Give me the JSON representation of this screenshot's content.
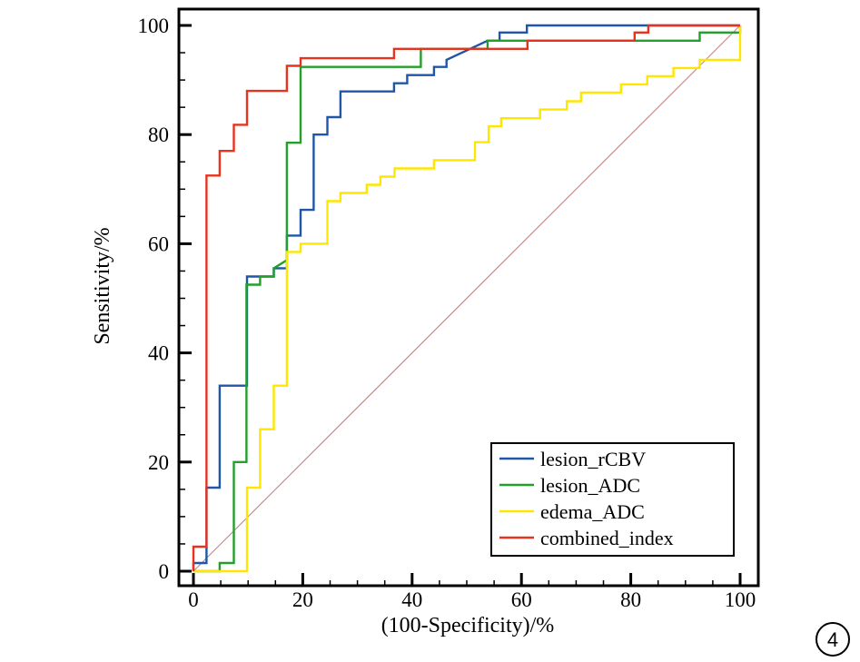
{
  "chart_data": {
    "type": "line",
    "title": "",
    "xlabel": "(100-Specificity)/%",
    "ylabel": "Sensitivity/%",
    "xlim": [
      0,
      100
    ],
    "ylim": [
      0,
      100
    ],
    "xticks": [
      0,
      20,
      40,
      60,
      80,
      100
    ],
    "yticks": [
      0,
      20,
      40,
      60,
      80,
      100
    ],
    "xtick_labels": [
      "0",
      "20",
      "40",
      "60",
      "80",
      "100"
    ],
    "ytick_labels": [
      "0",
      "20",
      "40",
      "60",
      "80",
      "100"
    ],
    "grid": false,
    "legend_position": "bottom-right",
    "panel_label": "4",
    "reference_line": {
      "x": [
        0,
        100
      ],
      "y": [
        0,
        100
      ],
      "color": "#c98a8a"
    },
    "series": [
      {
        "name": "lesion_rCBV",
        "color": "#1f56a8",
        "points": [
          [
            0,
            0
          ],
          [
            0,
            1.5
          ],
          [
            2.4,
            1.5
          ],
          [
            2.4,
            15.3
          ],
          [
            4.8,
            15.3
          ],
          [
            4.8,
            34
          ],
          [
            9.8,
            34
          ],
          [
            9.8,
            54
          ],
          [
            14.7,
            54
          ],
          [
            14.7,
            55.5
          ],
          [
            17.1,
            55.5
          ],
          [
            17.1,
            61.5
          ],
          [
            19.6,
            61.5
          ],
          [
            19.6,
            66.2
          ],
          [
            22,
            66.2
          ],
          [
            22,
            80
          ],
          [
            24.5,
            80
          ],
          [
            24.5,
            83.2
          ],
          [
            26.9,
            83.2
          ],
          [
            26.9,
            87.9
          ],
          [
            36.7,
            87.9
          ],
          [
            36.7,
            89.4
          ],
          [
            39.1,
            89.4
          ],
          [
            39.1,
            90.9
          ],
          [
            44,
            90.9
          ],
          [
            44,
            92.4
          ],
          [
            46.3,
            92.4
          ],
          [
            46.3,
            93.7
          ],
          [
            53.8,
            97.2
          ],
          [
            56,
            97.2
          ],
          [
            56,
            98.7
          ],
          [
            61,
            98.7
          ],
          [
            61,
            100
          ],
          [
            100,
            100
          ]
        ]
      },
      {
        "name": "lesion_ADC",
        "color": "#22a02a",
        "points": [
          [
            0,
            0
          ],
          [
            4.8,
            0
          ],
          [
            4.8,
            1.5
          ],
          [
            7.4,
            1.5
          ],
          [
            7.4,
            20
          ],
          [
            9.7,
            20
          ],
          [
            9.7,
            52.5
          ],
          [
            12.2,
            52.5
          ],
          [
            12.2,
            54
          ],
          [
            14.7,
            54
          ],
          [
            14.7,
            55.5
          ],
          [
            17.1,
            57
          ],
          [
            17.1,
            78.5
          ],
          [
            19.6,
            78.5
          ],
          [
            19.6,
            92.4
          ],
          [
            41.6,
            92.4
          ],
          [
            41.6,
            95.7
          ],
          [
            53.8,
            95.7
          ],
          [
            53.8,
            97.2
          ],
          [
            92.6,
            97.2
          ],
          [
            92.6,
            98.7
          ],
          [
            100,
            98.7
          ],
          [
            100,
            100
          ]
        ]
      },
      {
        "name": "edema_ADC",
        "color": "#ffe600",
        "points": [
          [
            0,
            0
          ],
          [
            9.8,
            0
          ],
          [
            9.8,
            15.3
          ],
          [
            12.2,
            15.3
          ],
          [
            12.2,
            26
          ],
          [
            14.7,
            26
          ],
          [
            14.7,
            34
          ],
          [
            17.1,
            34
          ],
          [
            17.1,
            58.5
          ],
          [
            19.6,
            58.5
          ],
          [
            19.6,
            60
          ],
          [
            24.5,
            60
          ],
          [
            24.5,
            67.8
          ],
          [
            26.9,
            67.8
          ],
          [
            26.9,
            69.3
          ],
          [
            31.7,
            69.3
          ],
          [
            31.7,
            70.8
          ],
          [
            34.2,
            70.8
          ],
          [
            34.2,
            72.3
          ],
          [
            36.8,
            72.3
          ],
          [
            36.8,
            73.8
          ],
          [
            44,
            73.8
          ],
          [
            44,
            75.3
          ],
          [
            51.5,
            75.3
          ],
          [
            51.5,
            78.6
          ],
          [
            54,
            78.6
          ],
          [
            54,
            81.5
          ],
          [
            56.3,
            81.5
          ],
          [
            56.3,
            83
          ],
          [
            63.4,
            83
          ],
          [
            63.4,
            84.6
          ],
          [
            68.3,
            84.6
          ],
          [
            68.3,
            86.1
          ],
          [
            70.9,
            86.1
          ],
          [
            70.9,
            87.7
          ],
          [
            78.2,
            87.7
          ],
          [
            78.2,
            89.2
          ],
          [
            83,
            89.2
          ],
          [
            83,
            90.7
          ],
          [
            87.8,
            90.7
          ],
          [
            87.8,
            92.2
          ],
          [
            92.6,
            92.2
          ],
          [
            92.6,
            93.7
          ],
          [
            100,
            93.7
          ],
          [
            100,
            100
          ]
        ]
      },
      {
        "name": "combined_index",
        "color": "#e8321e",
        "points": [
          [
            0,
            0
          ],
          [
            0,
            4.5
          ],
          [
            2.4,
            4.5
          ],
          [
            2.4,
            72.5
          ],
          [
            4.8,
            72.5
          ],
          [
            4.8,
            77
          ],
          [
            7.4,
            77
          ],
          [
            7.4,
            81.8
          ],
          [
            9.8,
            81.8
          ],
          [
            9.8,
            88
          ],
          [
            17.1,
            88
          ],
          [
            17.1,
            92.6
          ],
          [
            19.6,
            92.6
          ],
          [
            19.6,
            94
          ],
          [
            36.7,
            94
          ],
          [
            36.7,
            95.7
          ],
          [
            61.1,
            95.7
          ],
          [
            61.1,
            97.2
          ],
          [
            80.7,
            97.2
          ],
          [
            80.7,
            98.7
          ],
          [
            83.2,
            98.7
          ],
          [
            83.2,
            100
          ],
          [
            100,
            100
          ]
        ]
      }
    ]
  }
}
